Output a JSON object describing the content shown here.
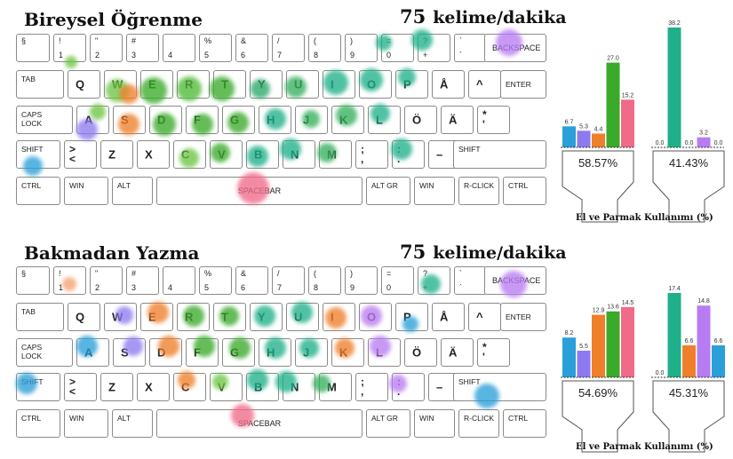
{
  "keys": {
    "esc": "§",
    "bksp": "BACKSPACE",
    "tab": "TAB",
    "enter": "ENTER",
    "caps": "CAPS\nLOCK",
    "shift": "SHIFT",
    "ctrl": "CTRL",
    "win": "WIN",
    "alt": "ALT",
    "space": "SPACEBAR",
    "altgr": "ALT GR",
    "rclick": "R-CLICK",
    "num": [
      [
        "!",
        "1"
      ],
      [
        "\"",
        "2"
      ],
      [
        "#",
        "3"
      ],
      [
        "",
        "4"
      ],
      [
        "%",
        "5"
      ],
      [
        "&",
        "6"
      ],
      [
        "/",
        "7"
      ],
      [
        "(",
        "8"
      ],
      [
        ")",
        "9"
      ],
      [
        "=",
        "0"
      ],
      [
        "?",
        "+"
      ],
      [
        "`",
        "´"
      ]
    ],
    "row1": [
      "Q",
      "W",
      "E",
      "R",
      "T",
      "Y",
      "U",
      "I",
      "O",
      "P",
      "Å",
      "^"
    ],
    "row2": [
      "A",
      "S",
      "D",
      "F",
      "G",
      "H",
      "J",
      "K",
      "L",
      "Ö",
      "Ä",
      "*\n'"
    ],
    "row3": [
      ">\n<",
      "Z",
      "X",
      "C",
      "V",
      "B",
      "N",
      "M",
      ";\n,",
      ":\n.",
      "–"
    ]
  },
  "panels": [
    {
      "title": "Bireysel Öğrenme",
      "speed_value": "75",
      "speed_unit": "kelime/dakika",
      "chart_data": {
        "type": "bar",
        "title": "El ve Parmak Kullanımı (%)",
        "hands": [
          {
            "name": "left",
            "total_label": "58.57%",
            "values": [
              6.7,
              5.3,
              4.4,
              27.0,
              15.2
            ],
            "labels": [
              "6.7",
              "5.3",
              "4.4",
              "27.0",
              "15.2"
            ]
          },
          {
            "name": "right",
            "total_label": "41.43%",
            "values": [
              0.0,
              38.2,
              0.0,
              3.2,
              0.0
            ],
            "labels": [
              "0.0",
              "38.2",
              "0.0",
              "3.2",
              "0.0"
            ]
          }
        ]
      },
      "blobs": [
        [
          475,
          45,
          24,
          "#1fb08a"
        ],
        [
          432,
          48,
          18,
          "#1fb08a"
        ],
        [
          573,
          48,
          30,
          "#b87cf2"
        ],
        [
          80,
          70,
          14,
          "#6cc644"
        ],
        [
          132,
          102,
          26,
          "#6cc644"
        ],
        [
          173,
          102,
          30,
          "#3cac2a"
        ],
        [
          213,
          100,
          28,
          "#4fba36"
        ],
        [
          250,
          100,
          28,
          "#3aaa2a"
        ],
        [
          293,
          100,
          22,
          "#2aa86a"
        ],
        [
          333,
          98,
          24,
          "#35b05c"
        ],
        [
          378,
          93,
          28,
          "#1fb08a"
        ],
        [
          418,
          90,
          26,
          "#1fb08a"
        ],
        [
          458,
          87,
          20,
          "#1fb08a"
        ],
        [
          145,
          106,
          22,
          "#ef7f2a"
        ],
        [
          110,
          126,
          18,
          "#6cc644"
        ],
        [
          145,
          140,
          24,
          "#ef7f2a"
        ],
        [
          98,
          146,
          24,
          "#8e7af0"
        ],
        [
          185,
          140,
          26,
          "#3aaa2a"
        ],
        [
          228,
          140,
          24,
          "#3aaa2a"
        ],
        [
          268,
          138,
          24,
          "#3aaa2a"
        ],
        [
          310,
          134,
          24,
          "#1fb08a"
        ],
        [
          350,
          134,
          20,
          "#35b05c"
        ],
        [
          390,
          130,
          24,
          "#35b05c"
        ],
        [
          428,
          128,
          22,
          "#1fb08a"
        ],
        [
          213,
          178,
          22,
          "#6cc644"
        ],
        [
          248,
          172,
          22,
          "#3aaa2a"
        ],
        [
          290,
          176,
          24,
          "#1fb08a"
        ],
        [
          327,
          168,
          24,
          "#1fb08a"
        ],
        [
          368,
          172,
          22,
          "#35b05c"
        ],
        [
          452,
          168,
          24,
          "#1fb08a"
        ],
        [
          37,
          187,
          22,
          "#2a9fd8"
        ],
        [
          285,
          212,
          36,
          "#f06a8a"
        ]
      ]
    },
    {
      "title": "Bakmadan Yazma",
      "speed_value": "75",
      "speed_unit": "kelime/dakika",
      "chart_data": {
        "type": "bar",
        "title": "El ve Parmak Kullanımı (%)",
        "hands": [
          {
            "name": "left",
            "total_label": "54.69%",
            "values": [
              8.2,
              5.5,
              12.9,
              13.6,
              14.5
            ],
            "labels": [
              "8.2",
              "5.5",
              "12.9",
              "13.6",
              "14.5"
            ]
          },
          {
            "name": "right",
            "total_label": "45.31%",
            "values": [
              0.0,
              17.4,
              6.6,
              14.8,
              6.6
            ],
            "labels": [
              "0.0",
              "17.4",
              "6.6",
              "14.8",
              "6.6"
            ]
          }
        ]
      },
      "blobs": [
        [
          78,
          320,
          16,
          "#f4a070"
        ],
        [
          485,
          320,
          22,
          "#1fb08a"
        ],
        [
          578,
          320,
          30,
          "#b87cf2"
        ],
        [
          140,
          355,
          20,
          "#8e7af0"
        ],
        [
          178,
          352,
          24,
          "#ef7f2a"
        ],
        [
          218,
          356,
          24,
          "#3aaa2a"
        ],
        [
          258,
          356,
          22,
          "#3aaa2a"
        ],
        [
          298,
          356,
          24,
          "#1fb08a"
        ],
        [
          340,
          352,
          24,
          "#1fb08a"
        ],
        [
          378,
          358,
          24,
          "#ef7f2a"
        ],
        [
          418,
          356,
          24,
          "#b87cf2"
        ],
        [
          462,
          365,
          18,
          "#2a9fd8"
        ],
        [
          98,
          390,
          24,
          "#2a9fd8"
        ],
        [
          150,
          390,
          22,
          "#8e7af0"
        ],
        [
          190,
          390,
          24,
          "#ef7f2a"
        ],
        [
          230,
          390,
          24,
          "#3aaa2a"
        ],
        [
          270,
          392,
          24,
          "#3aaa2a"
        ],
        [
          310,
          392,
          24,
          "#1fb08a"
        ],
        [
          348,
          392,
          22,
          "#1fb08a"
        ],
        [
          388,
          392,
          22,
          "#ef7f2a"
        ],
        [
          428,
          390,
          24,
          "#b87cf2"
        ],
        [
          210,
          428,
          20,
          "#ef7f2a"
        ],
        [
          248,
          430,
          18,
          "#6cc644"
        ],
        [
          290,
          428,
          24,
          "#1fb08a"
        ],
        [
          322,
          430,
          24,
          "#1fb08a"
        ],
        [
          362,
          432,
          20,
          "#35b05c"
        ],
        [
          448,
          432,
          20,
          "#b87cf2"
        ],
        [
          30,
          432,
          24,
          "#2a9fd8"
        ],
        [
          548,
          446,
          28,
          "#2a9fd8"
        ],
        [
          273,
          468,
          26,
          "#f06a8a"
        ]
      ]
    }
  ],
  "colors": {
    "f1": "#2a9fd8",
    "f2": "#8e7af0",
    "f3": "#ef7f2a",
    "f4": "#3aaa2a",
    "f5": "#f06a8a",
    "rf1": "#2aa86a",
    "rf2": "#1fb08a",
    "rf3": "#ef7f2a",
    "rf4": "#b87cf2",
    "rf5": "#2a9fd8"
  }
}
